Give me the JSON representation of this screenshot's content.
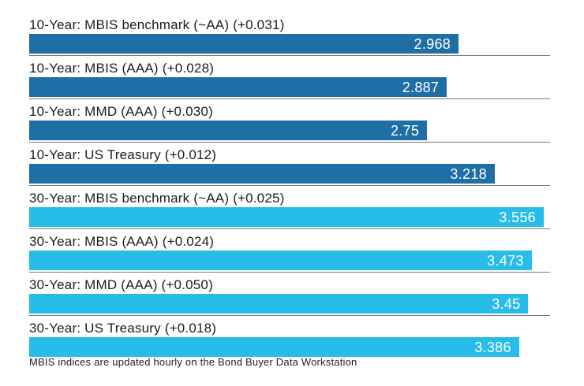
{
  "chart_data": {
    "type": "bar",
    "orientation": "horizontal",
    "xlim": [
      0,
      3.6
    ],
    "grid": false,
    "legend": "none",
    "colors": {
      "ten_year_bar": "#1F6EA6",
      "thirty_year_bar": "#28BCE9",
      "separator": "#7A7A7A",
      "value_text": "#FFFFFF",
      "label_text": "#1D1D1D"
    },
    "rows": [
      {
        "label": "10-Year: MBIS benchmark (~AA) (+0.031)",
        "value": 2.968,
        "display": "2.968",
        "group": "ten_year_bar"
      },
      {
        "label": "10-Year: MBIS (AAA) (+0.028)",
        "value": 2.887,
        "display": "2.887",
        "group": "ten_year_bar"
      },
      {
        "label": "10-Year: MMD (AAA) (+0.030)",
        "value": 2.75,
        "display": "2.75",
        "group": "ten_year_bar"
      },
      {
        "label": "10-Year: US Treasury (+0.012)",
        "value": 3.218,
        "display": "3.218",
        "group": "ten_year_bar"
      },
      {
        "label": "30-Year: MBIS benchmark (~AA) (+0.025)",
        "value": 3.556,
        "display": "3.556",
        "group": "thirty_year_bar"
      },
      {
        "label": "30-Year: MBIS (AAA) (+0.024)",
        "value": 3.473,
        "display": "3.473",
        "group": "thirty_year_bar"
      },
      {
        "label": "30-Year: MMD (AAA) (+0.050)",
        "value": 3.45,
        "display": "3.45",
        "group": "thirty_year_bar"
      },
      {
        "label": "30-Year: US Treasury (+0.018)",
        "value": 3.386,
        "display": "3.386",
        "group": "thirty_year_bar"
      }
    ],
    "footnote": "MBIS indices are updated hourly on the Bond Buyer Data Workstation"
  }
}
